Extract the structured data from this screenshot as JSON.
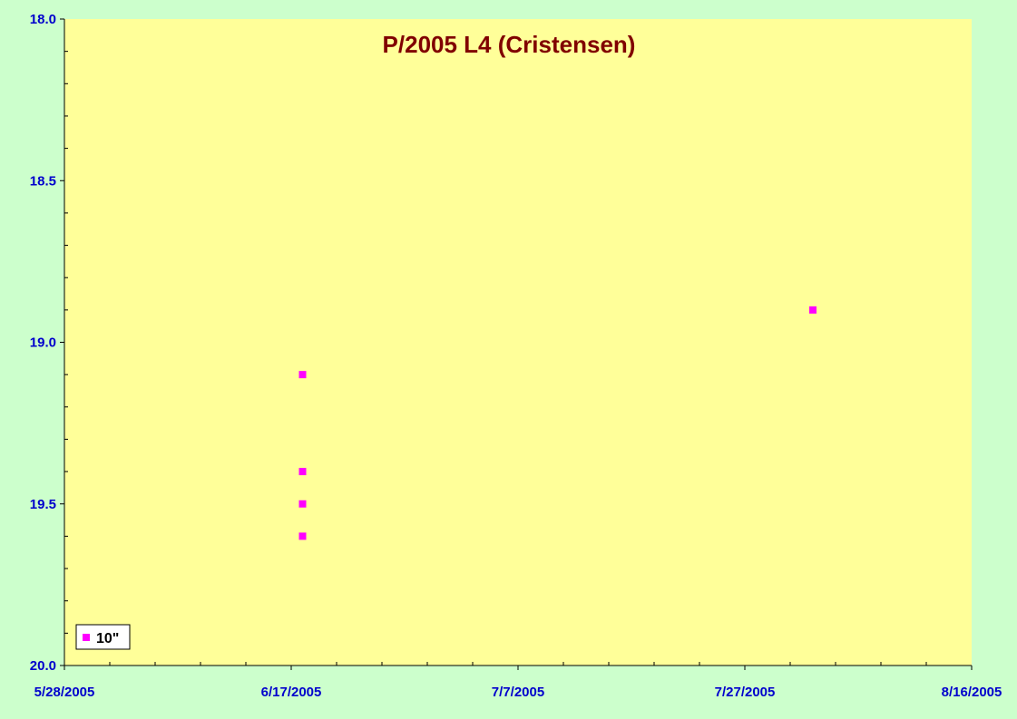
{
  "colors": {
    "page_background": "#ccffcc",
    "plot_background": "#ffff99",
    "axis": "#000000",
    "tick_label": "#0000cc",
    "title": "#800000",
    "marker": "#ff00ff"
  },
  "chart_data": {
    "type": "scatter",
    "title": "P/2005 L4 (Cristensen)",
    "xlabel": "",
    "ylabel": "",
    "x_axis": {
      "kind": "date",
      "range": [
        "2005-05-28",
        "2005-08-16"
      ],
      "tick_labels": [
        "5/28/2005",
        "6/17/2005",
        "7/7/2005",
        "7/27/2005",
        "8/16/2005"
      ],
      "tick_dates": [
        "2005-05-28",
        "2005-06-17",
        "2005-07-07",
        "2005-07-27",
        "2005-08-16"
      ],
      "minor_tick_interval_days": 4
    },
    "y_axis": {
      "range": [
        18.0,
        20.0
      ],
      "reversed": true,
      "tick_labels": [
        "18.0",
        "18.5",
        "19.0",
        "19.5",
        "20.0"
      ],
      "tick_values": [
        18.0,
        18.5,
        19.0,
        19.5,
        20.0
      ],
      "minor_tick_interval": 0.1
    },
    "grid": false,
    "legend_position": "bottom-left",
    "series": [
      {
        "name": "10\"",
        "marker": "square",
        "points": [
          {
            "x": "2005-06-18",
            "y": 19.1
          },
          {
            "x": "2005-06-18",
            "y": 19.4
          },
          {
            "x": "2005-06-18",
            "y": 19.5
          },
          {
            "x": "2005-06-18",
            "y": 19.6
          },
          {
            "x": "2005-08-02",
            "y": 18.9
          }
        ]
      }
    ]
  }
}
